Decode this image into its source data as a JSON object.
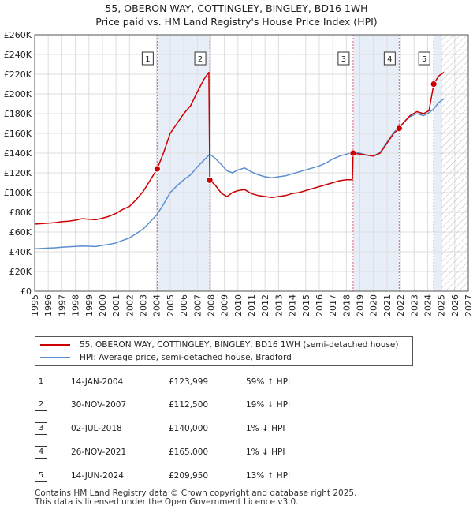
{
  "title": "55, OBERON WAY, COTTINGLEY, BINGLEY, BD16 1WH",
  "subtitle": "Price paid vs. HM Land Registry's House Price Index (HPI)",
  "colors": {
    "property": "#cc0000",
    "hpi": "#5b8fd0",
    "band": "#e8eef8",
    "hatch": "#bbbbbb",
    "marker_line": "#e06080"
  },
  "legend": {
    "property": "55, OBERON WAY, COTTINGLEY, BINGLEY, BD16 1WH (semi-detached house)",
    "hpi": "HPI: Average price, semi-detached house, Bradford"
  },
  "transactions": [
    {
      "num": "1",
      "date": "14-JAN-2004",
      "price": "£123,999",
      "hpi": "59% ↑ HPI"
    },
    {
      "num": "2",
      "date": "30-NOV-2007",
      "price": "£112,500",
      "hpi": "19% ↓ HPI"
    },
    {
      "num": "3",
      "date": "02-JUL-2018",
      "price": "£140,000",
      "hpi": "1% ↓ HPI"
    },
    {
      "num": "4",
      "date": "26-NOV-2021",
      "price": "£165,000",
      "hpi": "1% ↓ HPI"
    },
    {
      "num": "5",
      "date": "14-JUN-2024",
      "price": "£209,950",
      "hpi": "13% ↑ HPI"
    }
  ],
  "footer": {
    "line1": "Contains HM Land Registry data © Crown copyright and database right 2025.",
    "line2": "This data is licensed under the Open Government Licence v3.0."
  },
  "chart_data": {
    "type": "line",
    "xlim": [
      1995,
      2027
    ],
    "ylim": [
      0,
      260000
    ],
    "y_ticks": [
      0,
      20000,
      40000,
      60000,
      80000,
      100000,
      120000,
      140000,
      160000,
      180000,
      200000,
      220000,
      240000,
      260000
    ],
    "y_tick_labels": [
      "£0",
      "£20K",
      "£40K",
      "£60K",
      "£80K",
      "£100K",
      "£120K",
      "£140K",
      "£160K",
      "£180K",
      "£200K",
      "£220K",
      "£240K",
      "£260K"
    ],
    "x_ticks": [
      1995,
      1996,
      1997,
      1998,
      1999,
      2000,
      2001,
      2002,
      2003,
      2004,
      2005,
      2006,
      2007,
      2008,
      2009,
      2010,
      2011,
      2012,
      2013,
      2014,
      2015,
      2016,
      2017,
      2018,
      2019,
      2020,
      2021,
      2022,
      2023,
      2024,
      2025,
      2026,
      2027
    ],
    "forecast_start": 2025.0,
    "grid": true,
    "shaded_periods": [
      [
        2004.04,
        2007.92
      ],
      [
        2018.5,
        2021.9
      ],
      [
        2024.45,
        2025.0
      ]
    ],
    "sales": [
      {
        "label": "1",
        "x": 2004.04,
        "y": 123999
      },
      {
        "label": "2",
        "x": 2007.92,
        "y": 112500
      },
      {
        "label": "3",
        "x": 2018.5,
        "y": 140000
      },
      {
        "label": "4",
        "x": 2021.9,
        "y": 165000
      },
      {
        "label": "5",
        "x": 2024.45,
        "y": 209950
      }
    ],
    "series": [
      {
        "name": "55, OBERON WAY, COTTINGLEY, BINGLEY, BD16 1WH (semi-detached house)",
        "color": "#cc0000",
        "points": [
          [
            1995.0,
            68000
          ],
          [
            1995.5,
            68500
          ],
          [
            1996.0,
            69000
          ],
          [
            1996.5,
            69500
          ],
          [
            1997.0,
            70500
          ],
          [
            1997.5,
            71000
          ],
          [
            1998.0,
            72000
          ],
          [
            1998.5,
            73500
          ],
          [
            1999.0,
            73000
          ],
          [
            1999.5,
            72500
          ],
          [
            2000.0,
            74000
          ],
          [
            2000.5,
            76000
          ],
          [
            2001.0,
            79000
          ],
          [
            2001.5,
            83000
          ],
          [
            2002.0,
            86000
          ],
          [
            2002.5,
            93000
          ],
          [
            2003.0,
            101000
          ],
          [
            2003.5,
            112000
          ],
          [
            2004.04,
            123999
          ],
          [
            2004.5,
            140000
          ],
          [
            2005.0,
            160000
          ],
          [
            2005.5,
            170000
          ],
          [
            2006.0,
            180000
          ],
          [
            2006.5,
            188000
          ],
          [
            2007.0,
            202000
          ],
          [
            2007.5,
            215000
          ],
          [
            2007.85,
            222000
          ],
          [
            2007.92,
            112500
          ],
          [
            2008.3,
            108000
          ],
          [
            2008.8,
            99000
          ],
          [
            2009.2,
            96000
          ],
          [
            2009.6,
            100000
          ],
          [
            2010.0,
            102000
          ],
          [
            2010.5,
            103000
          ],
          [
            2011.0,
            99000
          ],
          [
            2011.5,
            97000
          ],
          [
            2012.0,
            96000
          ],
          [
            2012.5,
            95000
          ],
          [
            2013.0,
            96000
          ],
          [
            2013.5,
            97000
          ],
          [
            2014.0,
            99000
          ],
          [
            2014.5,
            100000
          ],
          [
            2015.0,
            102000
          ],
          [
            2015.5,
            104000
          ],
          [
            2016.0,
            106000
          ],
          [
            2016.5,
            108000
          ],
          [
            2017.0,
            110000
          ],
          [
            2017.5,
            112000
          ],
          [
            2018.0,
            113000
          ],
          [
            2018.45,
            113000
          ],
          [
            2018.5,
            140000
          ],
          [
            2019.0,
            139000
          ],
          [
            2019.5,
            138000
          ],
          [
            2020.0,
            137000
          ],
          [
            2020.5,
            140000
          ],
          [
            2021.0,
            150000
          ],
          [
            2021.5,
            160000
          ],
          [
            2021.9,
            165000
          ],
          [
            2022.3,
            172000
          ],
          [
            2022.7,
            178000
          ],
          [
            2023.2,
            182000
          ],
          [
            2023.7,
            180000
          ],
          [
            2024.1,
            183000
          ],
          [
            2024.45,
            209950
          ],
          [
            2024.8,
            218000
          ],
          [
            2025.2,
            222000
          ]
        ]
      },
      {
        "name": "HPI: Average price, semi-detached house, Bradford",
        "color": "#5b8fd0",
        "points": [
          [
            1995.0,
            43000
          ],
          [
            1995.5,
            43300
          ],
          [
            1996.0,
            43700
          ],
          [
            1996.5,
            44000
          ],
          [
            1997.0,
            44600
          ],
          [
            1997.5,
            45000
          ],
          [
            1998.0,
            45400
          ],
          [
            1998.5,
            45800
          ],
          [
            1999.0,
            45600
          ],
          [
            1999.5,
            45300
          ],
          [
            2000.0,
            46500
          ],
          [
            2000.5,
            47500
          ],
          [
            2001.0,
            49000
          ],
          [
            2001.5,
            51500
          ],
          [
            2002.0,
            54000
          ],
          [
            2002.5,
            58500
          ],
          [
            2003.0,
            63000
          ],
          [
            2003.5,
            70000
          ],
          [
            2004.04,
            78000
          ],
          [
            2004.5,
            88000
          ],
          [
            2005.0,
            100000
          ],
          [
            2005.5,
            107000
          ],
          [
            2006.0,
            113000
          ],
          [
            2006.5,
            118000
          ],
          [
            2007.0,
            126000
          ],
          [
            2007.5,
            133000
          ],
          [
            2007.92,
            139000
          ],
          [
            2008.3,
            135000
          ],
          [
            2008.8,
            128000
          ],
          [
            2009.2,
            122000
          ],
          [
            2009.6,
            120000
          ],
          [
            2010.0,
            123000
          ],
          [
            2010.5,
            125000
          ],
          [
            2011.0,
            121000
          ],
          [
            2011.5,
            118000
          ],
          [
            2012.0,
            116000
          ],
          [
            2012.5,
            115000
          ],
          [
            2013.0,
            116000
          ],
          [
            2013.5,
            117000
          ],
          [
            2014.0,
            119000
          ],
          [
            2014.5,
            121000
          ],
          [
            2015.0,
            123000
          ],
          [
            2015.5,
            125000
          ],
          [
            2016.0,
            127000
          ],
          [
            2016.5,
            130000
          ],
          [
            2017.0,
            134000
          ],
          [
            2017.5,
            137000
          ],
          [
            2018.0,
            139000
          ],
          [
            2018.5,
            141000
          ],
          [
            2019.0,
            140000
          ],
          [
            2019.5,
            138000
          ],
          [
            2020.0,
            137000
          ],
          [
            2020.5,
            141000
          ],
          [
            2021.0,
            151000
          ],
          [
            2021.5,
            161000
          ],
          [
            2021.9,
            166000
          ],
          [
            2022.3,
            172000
          ],
          [
            2022.7,
            177000
          ],
          [
            2023.2,
            180000
          ],
          [
            2023.7,
            178000
          ],
          [
            2024.1,
            181000
          ],
          [
            2024.45,
            185000
          ],
          [
            2024.8,
            191000
          ],
          [
            2025.2,
            195000
          ]
        ]
      }
    ]
  }
}
